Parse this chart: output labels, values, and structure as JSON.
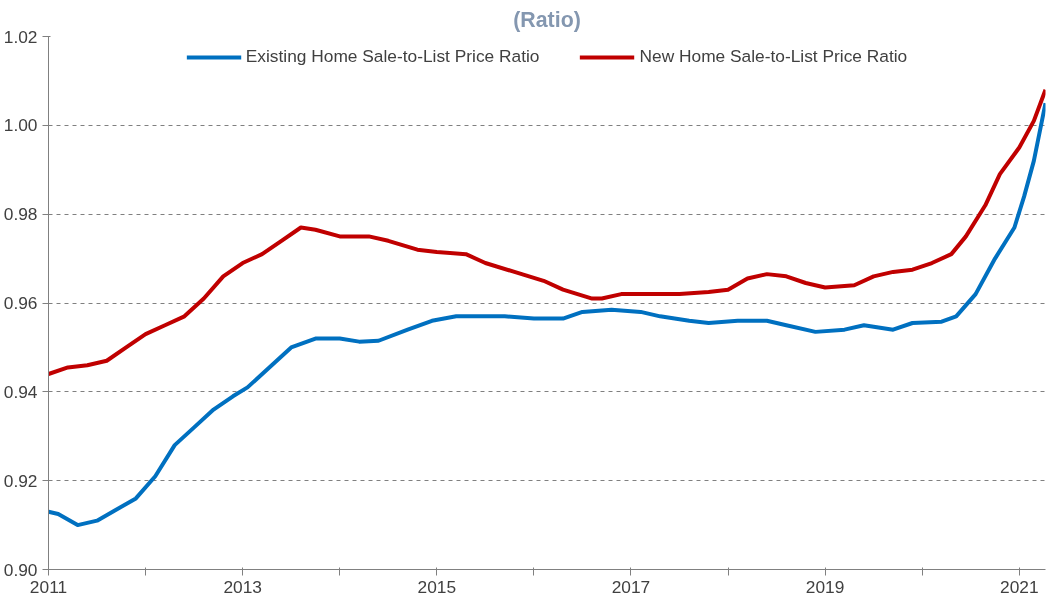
{
  "chart_data": {
    "type": "line",
    "title": "(Ratio)",
    "xlim": [
      2011,
      2021.27
    ],
    "xticks": [
      2011,
      {
        "value": 2012,
        "label": null
      },
      2013,
      {
        "value": 2014,
        "label": null
      },
      2015,
      {
        "value": 2016,
        "label": null
      },
      2017,
      {
        "value": 2018,
        "label": null
      },
      2019,
      {
        "value": 2020,
        "label": null
      },
      2021
    ],
    "ylim": [
      0.9,
      1.02
    ],
    "yticks": [
      {
        "value": 0.9,
        "label": "0.90"
      },
      {
        "value": 0.92,
        "label": "0.92"
      },
      {
        "value": 0.94,
        "label": "0.94"
      },
      {
        "value": 0.96,
        "label": "0.96"
      },
      {
        "value": 0.98,
        "label": "0.98"
      },
      {
        "value": 1.0,
        "label": "1.00"
      },
      {
        "value": 1.02,
        "label": "1.02"
      }
    ],
    "grid": "y",
    "legend": "top",
    "line_style": "solid",
    "series": [
      {
        "name": "Existing Home Sale-to-List Price Ratio",
        "color": "#0070c0",
        "x": [
          2011.0,
          2011.1,
          2011.3,
          2011.5,
          2011.9,
          2012.1,
          2012.3,
          2012.5,
          2012.7,
          2012.9,
          2013.05,
          2013.3,
          2013.5,
          2013.75,
          2014.0,
          2014.2,
          2014.4,
          2014.7,
          2014.95,
          2015.2,
          2015.4,
          2015.7,
          2016.0,
          2016.3,
          2016.5,
          2016.8,
          2017.1,
          2017.3,
          2017.6,
          2017.8,
          2018.1,
          2018.4,
          2018.6,
          2018.9,
          2019.2,
          2019.4,
          2019.7,
          2019.9,
          2020.2,
          2020.35,
          2020.55,
          2020.75,
          2020.95,
          2021.05,
          2021.15,
          2021.27
        ],
        "values": [
          0.913,
          0.9125,
          0.91,
          0.911,
          0.916,
          0.921,
          0.928,
          0.932,
          0.936,
          0.939,
          0.941,
          0.946,
          0.95,
          0.952,
          0.952,
          0.9513,
          0.9515,
          0.954,
          0.956,
          0.957,
          0.957,
          0.957,
          0.9565,
          0.9565,
          0.958,
          0.9585,
          0.958,
          0.957,
          0.956,
          0.9555,
          0.956,
          0.956,
          0.955,
          0.9535,
          0.954,
          0.955,
          0.954,
          0.9555,
          0.9558,
          0.957,
          0.962,
          0.97,
          0.977,
          0.984,
          0.992,
          1.005
        ]
      },
      {
        "name": "New Home Sale-to-List Price Ratio",
        "color": "#c00000",
        "x": [
          2011.0,
          2011.2,
          2011.4,
          2011.6,
          2011.8,
          2012.0,
          2012.2,
          2012.4,
          2012.6,
          2012.8,
          2013.0,
          2013.2,
          2013.4,
          2013.6,
          2013.75,
          2014.0,
          2014.3,
          2014.5,
          2014.8,
          2015.0,
          2015.3,
          2015.5,
          2015.8,
          2016.1,
          2016.3,
          2016.6,
          2016.7,
          2016.9,
          2017.2,
          2017.5,
          2017.8,
          2018.0,
          2018.2,
          2018.4,
          2018.6,
          2018.8,
          2019.0,
          2019.3,
          2019.5,
          2019.7,
          2019.9,
          2020.1,
          2020.3,
          2020.45,
          2020.65,
          2020.8,
          2021.0,
          2021.15,
          2021.27
        ],
        "values": [
          0.944,
          0.9455,
          0.946,
          0.947,
          0.95,
          0.953,
          0.955,
          0.957,
          0.961,
          0.966,
          0.969,
          0.971,
          0.974,
          0.977,
          0.9765,
          0.975,
          0.975,
          0.974,
          0.972,
          0.9715,
          0.971,
          0.969,
          0.967,
          0.965,
          0.963,
          0.961,
          0.961,
          0.962,
          0.962,
          0.962,
          0.9625,
          0.963,
          0.9655,
          0.9665,
          0.966,
          0.9645,
          0.9635,
          0.964,
          0.966,
          0.967,
          0.9675,
          0.969,
          0.971,
          0.975,
          0.982,
          0.989,
          0.995,
          1.001,
          1.008
        ]
      }
    ]
  }
}
